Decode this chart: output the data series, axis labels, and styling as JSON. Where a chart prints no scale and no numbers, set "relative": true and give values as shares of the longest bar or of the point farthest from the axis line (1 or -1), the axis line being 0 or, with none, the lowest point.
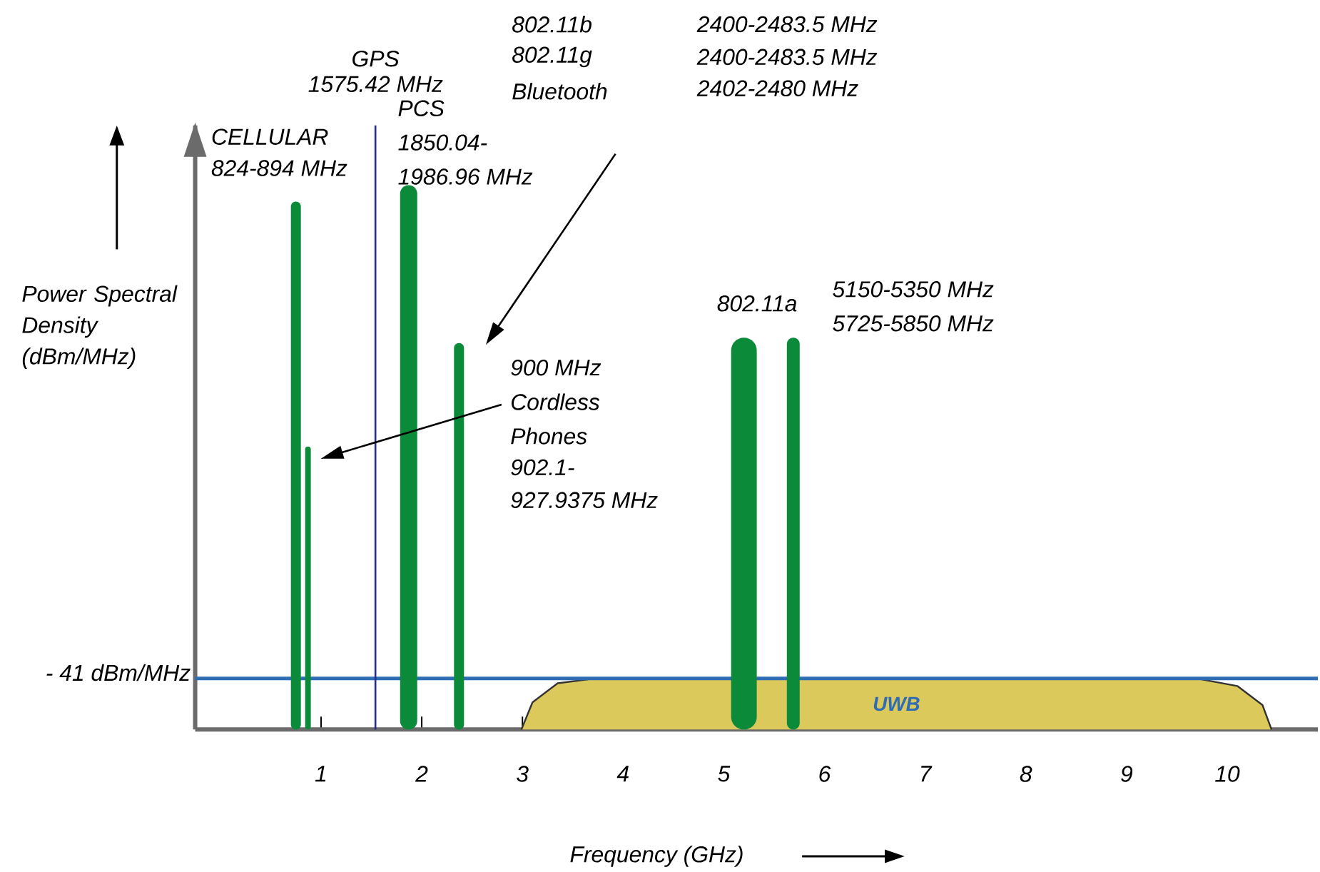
{
  "chart_data": {
    "type": "bar",
    "relative": true,
    "xlabel": "Frequency (GHz)",
    "ylabel": "Power Spectral Density (dBm/MHz)",
    "xlim": [
      -0.25,
      10.9
    ],
    "xticks": [
      1,
      2,
      3,
      4,
      5,
      6,
      7,
      8,
      9,
      10
    ],
    "tick_labels": "x",
    "series": [
      {
        "color": "#0b8a3a",
        "x": [
          0.75,
          0.87,
          1.87,
          2.37,
          5.2,
          5.69
        ],
        "values": [
          0.97,
          0.52,
          1,
          0.71,
          0.72,
          0.72
        ]
      },
      {
        "type": "area",
        "name": "UWB",
        "color": "#dcc95c",
        "x": [
          2.99,
          3.1,
          3.35,
          3.73,
          9.69,
          10.1,
          10.35,
          10.44
        ],
        "values": [
          0,
          0.05,
          0.085,
          0.094,
          0.094,
          0.08,
          0.045,
          0
        ]
      }
    ],
    "ref_lines": [
      {
        "axis": "y",
        "value": 0.094,
        "label": "- 41 dBm/MHz",
        "color": "#2e6db4"
      },
      {
        "axis": "x",
        "value": 1.54,
        "label": "GPS",
        "color": "#2b2b8c"
      }
    ],
    "annotations": [
      "CELLULAR",
      "824-894 MHz",
      "1575.42 MHz",
      "PCS",
      "1850.04-",
      "1986.96 MHz",
      "802.11b",
      "802.11g",
      "Bluetooth",
      "2400-2483.5 MHz",
      "2400-2483.5 MHz",
      "2402-2480 MHz",
      "802.11a",
      "5150-5350 MHz",
      "5725-5850 MHz",
      "900 MHz",
      "Cordless",
      "Phones",
      "902.1-",
      "927.9375 MHz"
    ]
  }
}
